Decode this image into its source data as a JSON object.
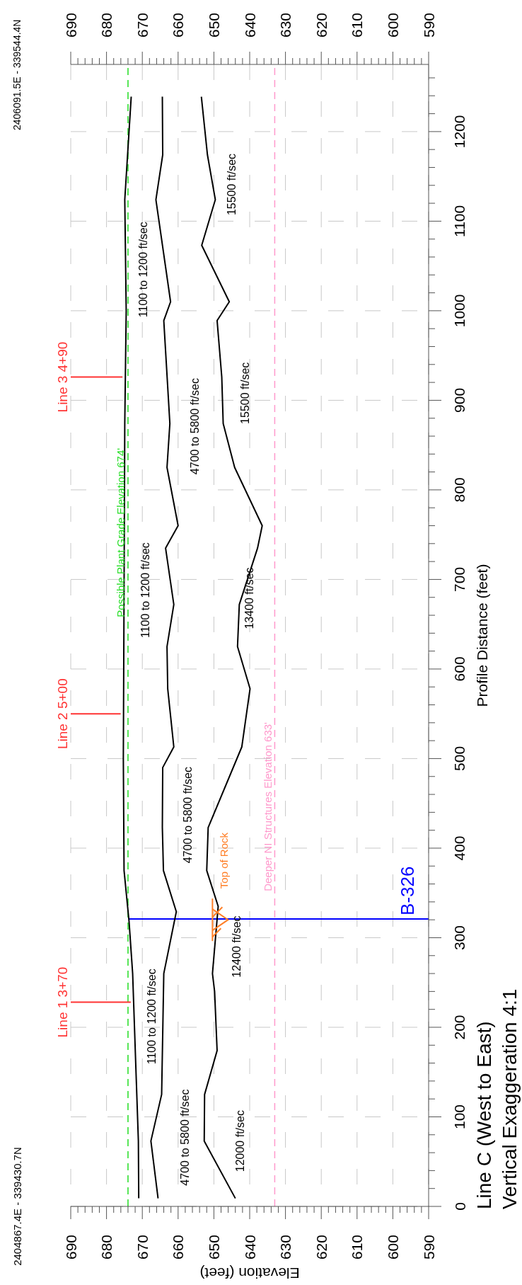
{
  "chart_data": {
    "type": "line",
    "title": "Line C (West to East)",
    "subtitle": "Vertical Exaggeration 4:1",
    "xlabel": "Elevation (feet)",
    "ylabel": "Profile Distance (feet)",
    "xlim": [
      690,
      590
    ],
    "xticks": [
      590,
      {
        "value": 592,
        "label": null
      },
      {
        "value": 594,
        "label": null
      },
      {
        "value": 596,
        "label": null
      },
      {
        "value": 598,
        "label": null
      },
      600,
      {
        "value": 602,
        "label": null
      },
      {
        "value": 604,
        "label": null
      },
      {
        "value": 606,
        "label": null
      },
      {
        "value": 608,
        "label": null
      },
      610,
      {
        "value": 612,
        "label": null
      },
      {
        "value": 614,
        "label": null
      },
      {
        "value": 616,
        "label": null
      },
      {
        "value": 618,
        "label": null
      },
      620,
      {
        "value": 622,
        "label": null
      },
      {
        "value": 624,
        "label": null
      },
      {
        "value": 626,
        "label": null
      },
      {
        "value": 628,
        "label": null
      },
      630,
      {
        "value": 632,
        "label": null
      },
      {
        "value": 634,
        "label": null
      },
      {
        "value": 636,
        "label": null
      },
      {
        "value": 638,
        "label": null
      },
      640,
      {
        "value": 642,
        "label": null
      },
      {
        "value": 644,
        "label": null
      },
      {
        "value": 646,
        "label": null
      },
      {
        "value": 648,
        "label": null
      },
      650,
      {
        "value": 652,
        "label": null
      },
      {
        "value": 654,
        "label": null
      },
      {
        "value": 656,
        "label": null
      },
      {
        "value": 658,
        "label": null
      },
      660,
      {
        "value": 662,
        "label": null
      },
      {
        "value": 664,
        "label": null
      },
      {
        "value": 666,
        "label": null
      },
      {
        "value": 668,
        "label": null
      },
      670,
      {
        "value": 672,
        "label": null
      },
      {
        "value": 674,
        "label": null
      },
      {
        "value": 676,
        "label": null
      },
      {
        "value": 678,
        "label": null
      },
      680,
      {
        "value": 682,
        "label": null
      },
      {
        "value": 684,
        "label": null
      },
      {
        "value": 686,
        "label": null
      },
      {
        "value": 688,
        "label": null
      },
      690
    ],
    "x2lim": [
      690,
      590
    ],
    "x2ticks": [
      590,
      {
        "value": 592,
        "label": null
      },
      {
        "value": 594,
        "label": null
      },
      {
        "value": 596,
        "label": null
      },
      {
        "value": 598,
        "label": null
      },
      600,
      {
        "value": 602,
        "label": null
      },
      {
        "value": 604,
        "label": null
      },
      {
        "value": 606,
        "label": null
      },
      {
        "value": 608,
        "label": null
      },
      610,
      {
        "value": 612,
        "label": null
      },
      {
        "value": 614,
        "label": null
      },
      {
        "value": 616,
        "label": null
      },
      {
        "value": 618,
        "label": null
      },
      620,
      {
        "value": 622,
        "label": null
      },
      {
        "value": 624,
        "label": null
      },
      {
        "value": 626,
        "label": null
      },
      {
        "value": 628,
        "label": null
      },
      630,
      {
        "value": 632,
        "label": null
      },
      {
        "value": 634,
        "label": null
      },
      {
        "value": 636,
        "label": null
      },
      {
        "value": 638,
        "label": null
      },
      640,
      {
        "value": 642,
        "label": null
      },
      {
        "value": 644,
        "label": null
      },
      {
        "value": 646,
        "label": null
      },
      {
        "value": 648,
        "label": null
      },
      650,
      {
        "value": 652,
        "label": null
      },
      {
        "value": 654,
        "label": null
      },
      {
        "value": 656,
        "label": null
      },
      {
        "value": 658,
        "label": null
      },
      660,
      {
        "value": 662,
        "label": null
      },
      {
        "value": 664,
        "label": null
      },
      {
        "value": 666,
        "label": null
      },
      {
        "value": 668,
        "label": null
      },
      670,
      {
        "value": 672,
        "label": null
      },
      {
        "value": 674,
        "label": null
      },
      {
        "value": 676,
        "label": null
      },
      {
        "value": 678,
        "label": null
      },
      680,
      {
        "value": 682,
        "label": null
      },
      {
        "value": 684,
        "label": null
      },
      {
        "value": 686,
        "label": null
      },
      {
        "value": 688,
        "label": null
      },
      690
    ],
    "ylim": [
      0,
      1275
    ],
    "yticks": [
      0,
      {
        "value": 20,
        "label": null
      },
      {
        "value": 40,
        "label": null
      },
      {
        "value": 60,
        "label": null
      },
      {
        "value": 80,
        "label": null
      },
      100,
      {
        "value": 120,
        "label": null
      },
      {
        "value": 140,
        "label": null
      },
      {
        "value": 160,
        "label": null
      },
      {
        "value": 180,
        "label": null
      },
      200,
      {
        "value": 220,
        "label": null
      },
      {
        "value": 240,
        "label": null
      },
      {
        "value": 260,
        "label": null
      },
      {
        "value": 280,
        "label": null
      },
      300,
      {
        "value": 320,
        "label": null
      },
      {
        "value": 340,
        "label": null
      },
      {
        "value": 360,
        "label": null
      },
      {
        "value": 380,
        "label": null
      },
      400,
      {
        "value": 420,
        "label": null
      },
      {
        "value": 440,
        "label": null
      },
      {
        "value": 460,
        "label": null
      },
      {
        "value": 480,
        "label": null
      },
      500,
      {
        "value": 520,
        "label": null
      },
      {
        "value": 540,
        "label": null
      },
      {
        "value": 560,
        "label": null
      },
      {
        "value": 580,
        "label": null
      },
      600,
      {
        "value": 620,
        "label": null
      },
      {
        "value": 640,
        "label": null
      },
      {
        "value": 660,
        "label": null
      },
      {
        "value": 680,
        "label": null
      },
      700,
      {
        "value": 720,
        "label": null
      },
      {
        "value": 740,
        "label": null
      },
      {
        "value": 760,
        "label": null
      },
      {
        "value": 780,
        "label": null
      },
      800,
      {
        "value": 820,
        "label": null
      },
      {
        "value": 840,
        "label": null
      },
      {
        "value": 860,
        "label": null
      },
      {
        "value": 880,
        "label": null
      },
      900,
      {
        "value": 920,
        "label": null
      },
      {
        "value": 940,
        "label": null
      },
      {
        "value": 960,
        "label": null
      },
      {
        "value": 980,
        "label": null
      },
      1000,
      {
        "value": 1020,
        "label": null
      },
      {
        "value": 1040,
        "label": null
      },
      {
        "value": 1060,
        "label": null
      },
      {
        "value": 1080,
        "label": null
      },
      1100,
      {
        "value": 1120,
        "label": null
      },
      {
        "value": 1140,
        "label": null
      },
      {
        "value": 1160,
        "label": null
      },
      {
        "value": 1180,
        "label": null
      },
      1200,
      {
        "value": 1220,
        "label": null
      },
      {
        "value": 1240,
        "label": null
      },
      {
        "value": 1260,
        "label": null
      }
    ],
    "grid": true,
    "series": [
      {
        "color": "#000000",
        "x": [
          671.0,
          671.1,
          672.7,
          673.7,
          675.1,
          675.3,
          674.9,
          674.5,
          674.9,
          673.1
        ],
        "values": [
          9,
          73,
          260,
          318,
          375,
          500,
          875,
          1000,
          1124,
          1239
        ]
      },
      {
        "color": "#000000",
        "x": [
          665.6,
          667.6,
          664.6,
          664.0,
          660.5,
          664.1,
          664.4,
          664.3,
          661.2,
          662.9,
          663.1,
          661.2,
          663.5,
          660.0,
          663.1,
          662.3,
          664.0,
          662.1,
          666.2,
          664.3,
          664.4
        ],
        "values": [
          9,
          73,
          125,
          260,
          329,
          375,
          423,
          490,
          513,
          578,
          625,
          672,
          735,
          760,
          825,
          874,
          989,
          1010,
          1124,
          1174,
          1239
        ]
      },
      {
        "color": "#000000",
        "x": [
          644.0,
          652.7,
          652.6,
          649.1,
          649.8,
          650.4,
          648.8,
          652.0,
          651.6,
          642.2,
          639.9,
          643.4,
          642.9,
          637.8,
          636.5,
          644.2,
          647.4,
          647.8,
          649.1,
          645.7,
          653.4,
          649.6,
          651.8,
          653.5
        ],
        "values": [
          9,
          73,
          125,
          174,
          240,
          260,
          335,
          375,
          423,
          513,
          578,
          625,
          672,
          735,
          760,
          825,
          874,
          926,
          989,
          1010,
          1073,
          1124,
          1174,
          1239
        ]
      }
    ],
    "ref_lines": [
      {
        "axis": "x",
        "value": 674,
        "label": "Possible Plant Grade Elevation 674'",
        "color": "#22dd22",
        "line_style": "dashed"
      },
      {
        "axis": "x",
        "value": 633,
        "label": "Deeper NI Structures Elevation 633'",
        "color": "#ff99cc",
        "line_style": "dashed"
      },
      {
        "axis": "y",
        "value": 228,
        "label": "Line 1 3+70",
        "color": "#ff3333",
        "line_style": "solid"
      },
      {
        "axis": "y",
        "value": 550,
        "label": "Line 2 5+00",
        "color": "#ff3333",
        "line_style": "solid"
      },
      {
        "axis": "y",
        "value": 926,
        "label": "Line 3 4+90",
        "color": "#ff3333",
        "line_style": "solid"
      },
      {
        "axis": "y",
        "value": 321,
        "label": "B-326",
        "color": "#0000ff",
        "line_style": "solid"
      }
    ],
    "annotations": [
      "2404867.4E - 339430.7N",
      "2406091.5E - 339544.4N",
      "1100 to 1200 ft/sec",
      "4700 to 5800 ft/sec",
      "12000 ft/sec",
      "12400 ft/sec",
      {
        "text": "Top of Rock",
        "x": 650.4,
        "y": 320
      },
      "4700 to 5800 ft/sec",
      "1100 to 1200 ft/sec",
      "13400 ft/sec",
      "4700 to 5800 ft/sec",
      "15500 ft/sec",
      "1100 to 1200 ft/sec",
      "15500 ft/sec"
    ]
  }
}
